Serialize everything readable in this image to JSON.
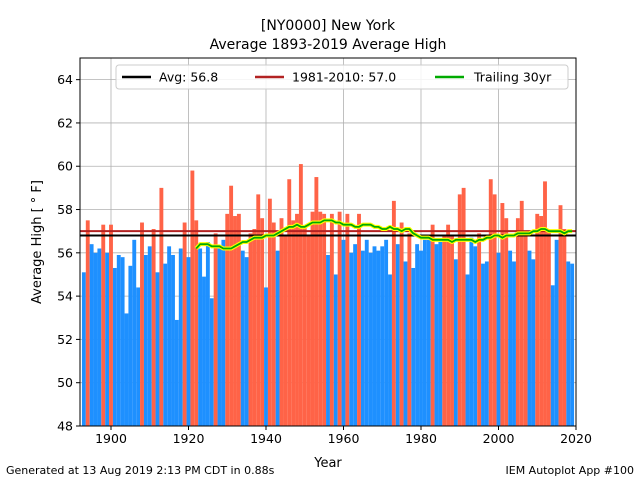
{
  "chart_data": {
    "type": "bar",
    "title_line1": "[NY0000] New York",
    "title_line2": "Average 1893-2019 Average High",
    "xlabel": "Year",
    "ylabel": "Average High [ ° F]",
    "xlim": [
      1892,
      2020
    ],
    "ylim": [
      48,
      65
    ],
    "xticks": [
      1900,
      1920,
      1940,
      1960,
      1980,
      2000,
      2020
    ],
    "yticks": [
      48,
      50,
      52,
      54,
      56,
      58,
      60,
      62,
      64
    ],
    "grid": true,
    "legend_position": "top",
    "legend": [
      {
        "label": "Avg: 56.8",
        "color": "#000000"
      },
      {
        "label": "1981-2010: 57.0",
        "color": "#b22222"
      },
      {
        "label": "Trailing 30yr",
        "color": "#00aa00"
      }
    ],
    "colors": {
      "above_avg": "#ff6347",
      "below_avg": "#1e90ff",
      "avg_line": "#000000",
      "normal_line": "#b22222",
      "trailing_line": "#00aa00",
      "trailing_outline": "#ffff00"
    },
    "avg_value": 56.8,
    "normal_value": 57.0,
    "years": [
      1893,
      1894,
      1895,
      1896,
      1897,
      1898,
      1899,
      1900,
      1901,
      1902,
      1903,
      1904,
      1905,
      1906,
      1907,
      1908,
      1909,
      1910,
      1911,
      1912,
      1913,
      1914,
      1915,
      1916,
      1917,
      1918,
      1919,
      1920,
      1921,
      1922,
      1923,
      1924,
      1925,
      1926,
      1927,
      1928,
      1929,
      1930,
      1931,
      1932,
      1933,
      1934,
      1935,
      1936,
      1937,
      1938,
      1939,
      1940,
      1941,
      1942,
      1943,
      1944,
      1945,
      1946,
      1947,
      1948,
      1949,
      1950,
      1951,
      1952,
      1953,
      1954,
      1955,
      1956,
      1957,
      1958,
      1959,
      1960,
      1961,
      1962,
      1963,
      1964,
      1965,
      1966,
      1967,
      1968,
      1969,
      1970,
      1971,
      1972,
      1973,
      1974,
      1975,
      1976,
      1977,
      1978,
      1979,
      1980,
      1981,
      1982,
      1983,
      1984,
      1985,
      1986,
      1987,
      1988,
      1989,
      1990,
      1991,
      1992,
      1993,
      1994,
      1995,
      1996,
      1997,
      1998,
      1999,
      2000,
      2001,
      2002,
      2003,
      2004,
      2005,
      2006,
      2007,
      2008,
      2009,
      2010,
      2011,
      2012,
      2013,
      2014,
      2015,
      2016,
      2017,
      2018,
      2019
    ],
    "values": [
      55.1,
      57.5,
      56.4,
      56.0,
      56.2,
      57.3,
      56.0,
      57.3,
      55.3,
      55.9,
      55.8,
      53.2,
      55.4,
      56.6,
      54.4,
      57.4,
      55.9,
      56.3,
      57.1,
      55.1,
      59.0,
      55.5,
      56.3,
      55.9,
      52.9,
      56.2,
      57.4,
      55.8,
      59.8,
      57.5,
      56.2,
      54.9,
      56.5,
      53.9,
      56.9,
      56.2,
      56.6,
      57.8,
      59.1,
      57.7,
      57.8,
      56.1,
      55.8,
      56.9,
      57.1,
      58.7,
      57.6,
      54.4,
      58.5,
      57.4,
      56.1,
      57.6,
      56.8,
      59.4,
      57.5,
      57.8,
      60.1,
      57.2,
      56.8,
      57.9,
      59.5,
      57.9,
      57.8,
      55.9,
      57.8,
      55.0,
      57.9,
      56.6,
      57.8,
      56.0,
      56.4,
      57.8,
      56.1,
      56.6,
      56.0,
      56.3,
      56.1,
      56.3,
      56.6,
      55.0,
      58.4,
      56.4,
      57.4,
      55.6,
      56.9,
      55.3,
      56.4,
      56.1,
      56.6,
      56.6,
      57.3,
      56.4,
      56.5,
      56.8,
      57.3,
      56.8,
      55.7,
      58.7,
      59.0,
      55.0,
      56.7,
      56.3,
      56.9,
      55.5,
      55.6,
      59.4,
      58.7,
      56.0,
      58.3,
      57.6,
      56.1,
      55.6,
      57.6,
      58.4,
      56.9,
      56.1,
      55.7,
      57.8,
      57.7,
      59.3,
      57.0,
      54.5,
      56.6,
      58.2,
      57.1,
      55.6,
      55.5
    ],
    "trailing_30yr": {
      "start_year": 1922,
      "values": [
        56.2,
        56.4,
        56.4,
        56.4,
        56.3,
        56.3,
        56.3,
        56.2,
        56.2,
        56.2,
        56.3,
        56.4,
        56.5,
        56.5,
        56.6,
        56.7,
        56.7,
        56.7,
        56.8,
        56.8,
        56.8,
        56.9,
        57.0,
        57.1,
        57.2,
        57.2,
        57.3,
        57.2,
        57.2,
        57.3,
        57.4,
        57.4,
        57.4,
        57.5,
        57.5,
        57.5,
        57.4,
        57.4,
        57.3,
        57.3,
        57.3,
        57.2,
        57.2,
        57.3,
        57.3,
        57.3,
        57.2,
        57.2,
        57.1,
        57.1,
        57.2,
        57.1,
        57.1,
        57.0,
        57.1,
        57.1,
        56.9,
        56.8,
        56.7,
        56.7,
        56.7,
        56.6,
        56.6,
        56.6,
        56.6,
        56.6,
        56.5,
        56.6,
        56.6,
        56.6,
        56.6,
        56.6,
        56.5,
        56.6,
        56.6,
        56.7,
        56.7,
        56.8,
        56.8,
        56.7,
        56.8,
        56.8,
        56.8,
        56.9,
        56.9,
        56.9,
        56.9,
        57.0,
        57.0,
        57.1,
        57.1,
        57.0,
        57.0,
        57.0,
        57.0,
        56.9,
        57.0,
        57.0
      ]
    }
  },
  "footer": {
    "left": "Generated at 13 Aug 2019 2:13 PM CDT in 0.88s",
    "right": "IEM Autoplot App #100"
  }
}
